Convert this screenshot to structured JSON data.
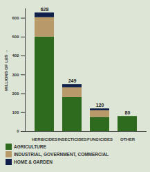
{
  "chart_data": {
    "type": "bar",
    "stacked": true,
    "grid": false,
    "legend": "bottom",
    "categories": [
      "HERBICIDES",
      "INSECTICIDES",
      "FUNGICIDES",
      "OTHER"
    ],
    "series": [
      {
        "name": "AGRICULTURE",
        "color": "#2e6b1e",
        "values": [
          500,
          180,
          75,
          80
        ]
      },
      {
        "name": "INDUSTRIAL, GOVERNMENT, COMMERCIAL",
        "color": "#b89a6a",
        "values": [
          103,
          52,
          35,
          0
        ]
      },
      {
        "name": "HOME & GARDEN",
        "color": "#0f1f4a",
        "values": [
          25,
          17,
          10,
          0
        ]
      }
    ],
    "totals": [
      628,
      249,
      120,
      80
    ],
    "y_label": "MILLIONS OF LBS",
    "ylim": [
      0,
      650
    ],
    "yticks": [
      0,
      100,
      200,
      300,
      400,
      500,
      600
    ]
  }
}
